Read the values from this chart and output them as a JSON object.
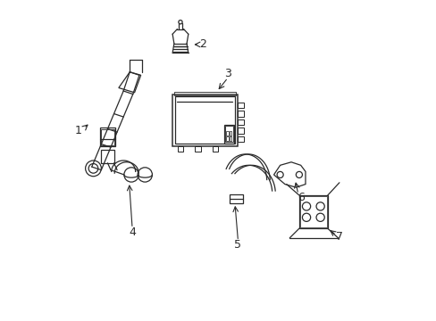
{
  "title": "",
  "background_color": "#ffffff",
  "figure_width": 4.89,
  "figure_height": 3.6,
  "dpi": 100,
  "line_color": "#2a2a2a",
  "line_width": 0.9,
  "label_fontsize": 9
}
